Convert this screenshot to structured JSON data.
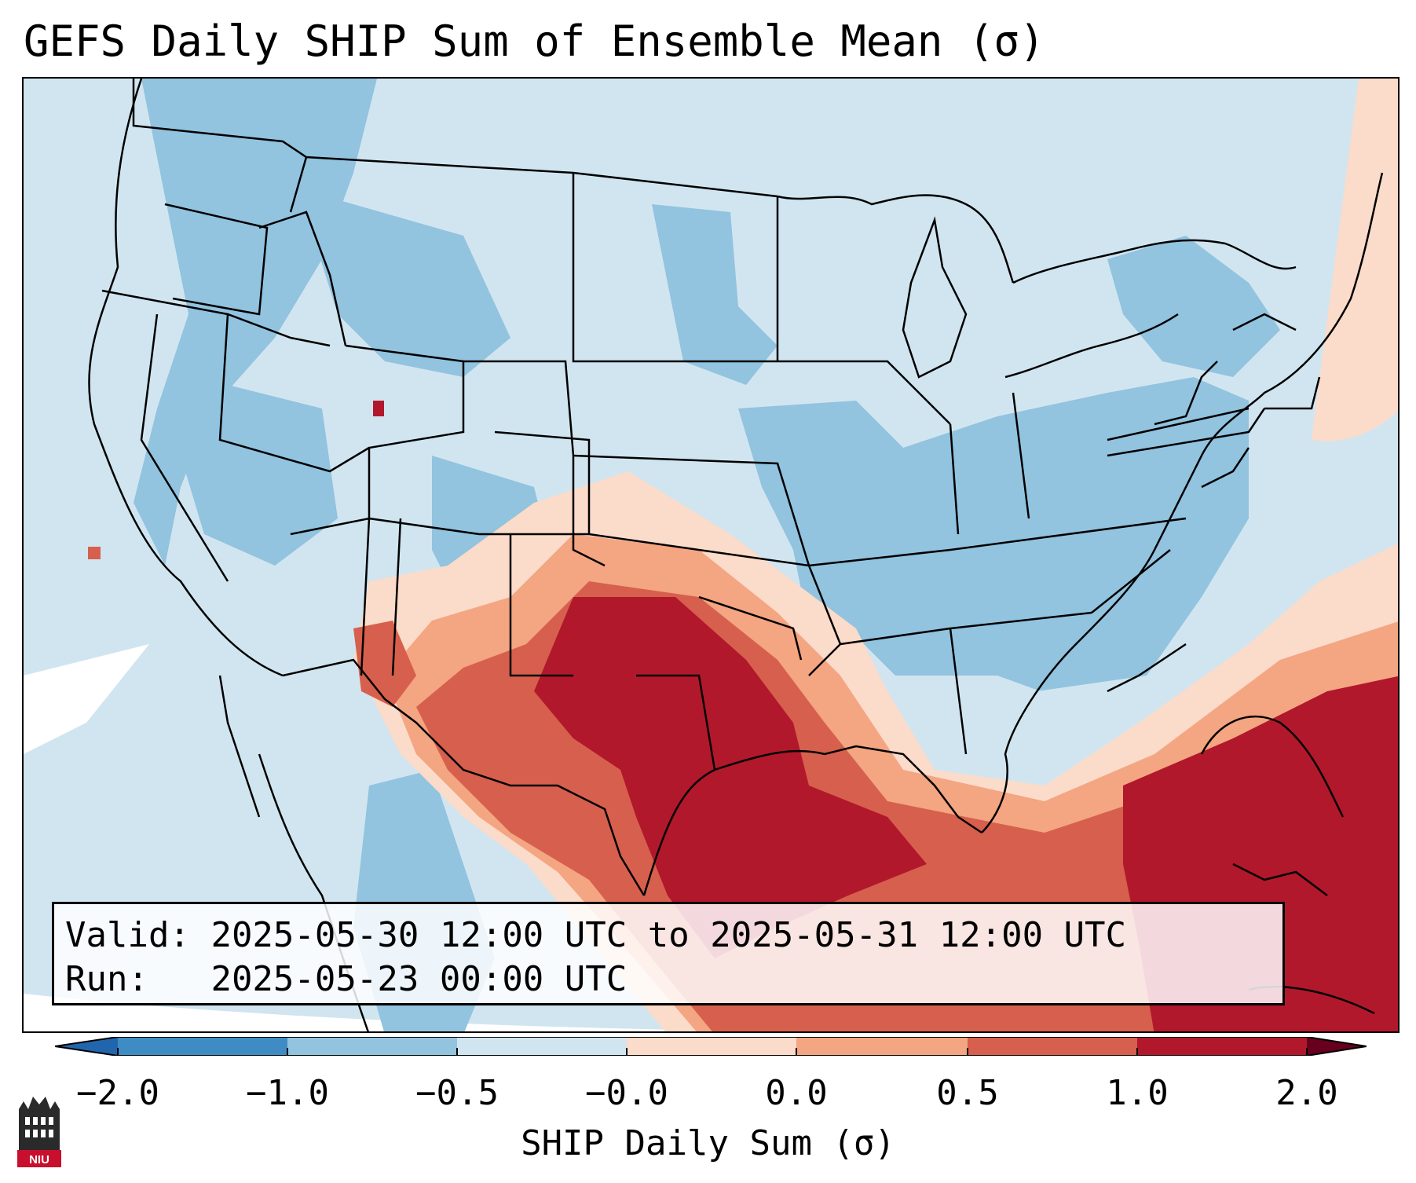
{
  "title": "GEFS Daily SHIP Sum of Ensemble Mean (σ)",
  "info": {
    "valid_label": "Valid:",
    "valid_value": "2025-05-30 12:00 UTC to 2025-05-31 12:00 UTC",
    "run_label": "Run:",
    "run_value": "2025-05-23 00:00 UTC"
  },
  "colorbar": {
    "label": "SHIP Daily Sum (σ)",
    "ticks": [
      "−2.0",
      "−1.0",
      "−0.5",
      "−0.0",
      "0.0",
      "0.5",
      "1.0",
      "2.0"
    ],
    "colors": [
      "#3f8cc4",
      "#92c3df",
      "#d1e5f0",
      "#fbdbc9",
      "#f4a582",
      "#d6604d",
      "#b2182b"
    ],
    "extend_low_color": "#2166ac",
    "extend_high_color": "#67001f"
  },
  "map_colors": {
    "ocean": "#d1e5f0",
    "light_blue": "#d1e5f0",
    "mid_blue": "#92c3df",
    "dark_blue": "#3f8cc4",
    "light_red": "#fbdbc9",
    "mid_red": "#f4a582",
    "red": "#d6604d",
    "dark_red": "#b2182b"
  },
  "logo": {
    "text": "NIU"
  }
}
